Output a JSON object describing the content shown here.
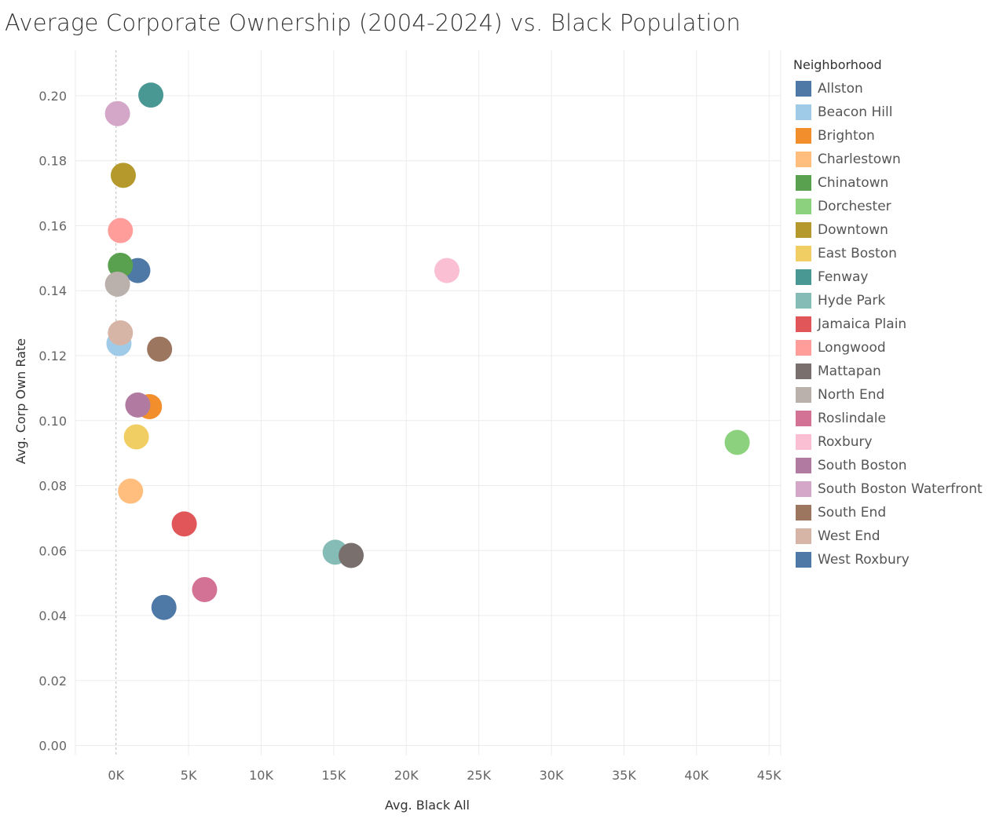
{
  "title": "Average Corporate Ownership (2004-2024) vs. Black Population",
  "legend": {
    "title": "Neighborhood",
    "items": [
      {
        "label": "Allston",
        "color": "#4e79a7"
      },
      {
        "label": "Beacon Hill",
        "color": "#a0cbe8"
      },
      {
        "label": "Brighton",
        "color": "#f28e2b"
      },
      {
        "label": "Charlestown",
        "color": "#ffbe7d"
      },
      {
        "label": "Chinatown",
        "color": "#59a14f"
      },
      {
        "label": "Dorchester",
        "color": "#8cd17d"
      },
      {
        "label": "Downtown",
        "color": "#b6992d"
      },
      {
        "label": "East Boston",
        "color": "#f1ce63"
      },
      {
        "label": "Fenway",
        "color": "#499894"
      },
      {
        "label": "Hyde Park",
        "color": "#86bcb6"
      },
      {
        "label": "Jamaica Plain",
        "color": "#e15759"
      },
      {
        "label": "Longwood",
        "color": "#ff9d9a"
      },
      {
        "label": "Mattapan",
        "color": "#79706e"
      },
      {
        "label": "North End",
        "color": "#bab0ac"
      },
      {
        "label": "Roslindale",
        "color": "#d37295"
      },
      {
        "label": "Roxbury",
        "color": "#fabfd2"
      },
      {
        "label": "South Boston",
        "color": "#b07aa1"
      },
      {
        "label": "South Boston Waterfront",
        "color": "#d4a6c8"
      },
      {
        "label": "South End",
        "color": "#9d7660"
      },
      {
        "label": "West End",
        "color": "#d7b5a6"
      },
      {
        "label": "West Roxbury",
        "color": "#4e79a7"
      }
    ]
  },
  "chart_data": {
    "type": "scatter",
    "title": "Average Corporate Ownership (2004-2024) vs. Black Population",
    "xlabel": "Avg. Black All",
    "ylabel": "Avg. Corp Own Rate",
    "xlim": [
      -2800,
      45800
    ],
    "ylim": [
      -0.003,
      0.214
    ],
    "xticks": [
      0,
      5000,
      10000,
      15000,
      20000,
      25000,
      30000,
      35000,
      40000,
      45000
    ],
    "xtick_labels": [
      "0K",
      "5K",
      "10K",
      "15K",
      "20K",
      "25K",
      "30K",
      "35K",
      "40K",
      "45K"
    ],
    "yticks": [
      0.0,
      0.02,
      0.04,
      0.06,
      0.08,
      0.1,
      0.12,
      0.14,
      0.16,
      0.18,
      0.2
    ],
    "ytick_labels": [
      "0.00",
      "0.02",
      "0.04",
      "0.06",
      "0.08",
      "0.10",
      "0.12",
      "0.14",
      "0.16",
      "0.18",
      "0.20"
    ],
    "grid": true,
    "legend_position": "right",
    "points": [
      {
        "name": "Allston",
        "x": 1500,
        "y": 0.1462
      },
      {
        "name": "Beacon Hill",
        "x": 200,
        "y": 0.1237
      },
      {
        "name": "Brighton",
        "x": 2300,
        "y": 0.1043
      },
      {
        "name": "Charlestown",
        "x": 1000,
        "y": 0.0783
      },
      {
        "name": "Chinatown",
        "x": 300,
        "y": 0.1478
      },
      {
        "name": "Dorchester",
        "x": 42800,
        "y": 0.0933
      },
      {
        "name": "Downtown",
        "x": 500,
        "y": 0.1755
      },
      {
        "name": "East Boston",
        "x": 1400,
        "y": 0.095
      },
      {
        "name": "Fenway",
        "x": 2400,
        "y": 0.2002
      },
      {
        "name": "Hyde Park",
        "x": 15100,
        "y": 0.0595
      },
      {
        "name": "Jamaica Plain",
        "x": 4700,
        "y": 0.0682
      },
      {
        "name": "Longwood",
        "x": 300,
        "y": 0.1585
      },
      {
        "name": "Mattapan",
        "x": 16200,
        "y": 0.0585
      },
      {
        "name": "North End",
        "x": 100,
        "y": 0.142
      },
      {
        "name": "Roslindale",
        "x": 6100,
        "y": 0.048
      },
      {
        "name": "Roxbury",
        "x": 22800,
        "y": 0.1462
      },
      {
        "name": "South Boston",
        "x": 1500,
        "y": 0.1048
      },
      {
        "name": "South Boston Waterfront",
        "x": 100,
        "y": 0.1945
      },
      {
        "name": "South End",
        "x": 3000,
        "y": 0.122
      },
      {
        "name": "West End",
        "x": 300,
        "y": 0.127
      },
      {
        "name": "West Roxbury",
        "x": 3300,
        "y": 0.0425
      }
    ]
  }
}
